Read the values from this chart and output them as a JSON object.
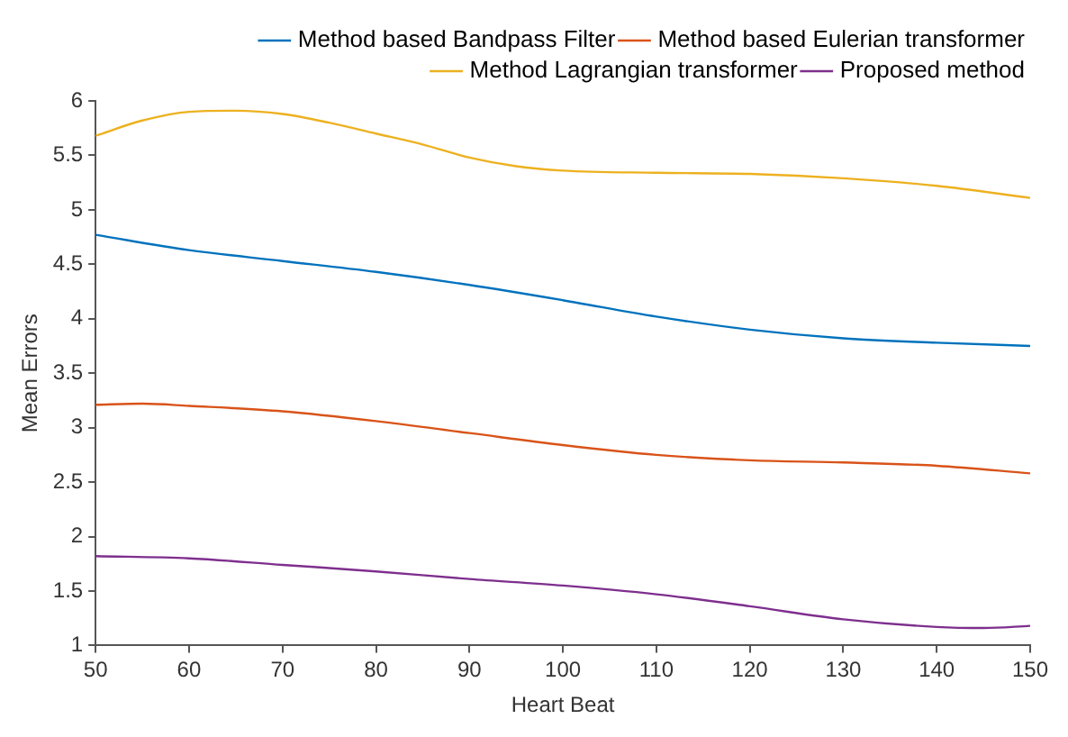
{
  "chart_data": {
    "type": "line",
    "xlabel": "Heart Beat",
    "ylabel": "Mean Errors",
    "xlim": [
      50,
      150
    ],
    "xticks": [
      50,
      60,
      70,
      80,
      90,
      100,
      110,
      120,
      130,
      140,
      150
    ],
    "ylim": [
      1,
      6
    ],
    "yticks": [
      1,
      1.5,
      2,
      2.5,
      3,
      3.5,
      4,
      4.5,
      5,
      5.5,
      6
    ],
    "grid": false,
    "legend": "top right",
    "marker": "none",
    "line_style": "solid",
    "series": [
      {
        "name": "Method based Bandpass Filter",
        "color": "#0072bd",
        "x": [
          50,
          60,
          70,
          80,
          90,
          100,
          110,
          120,
          130,
          140,
          150
        ],
        "values": [
          4.77,
          4.63,
          4.53,
          4.43,
          4.31,
          4.17,
          4.02,
          3.9,
          3.82,
          3.78,
          3.75
        ]
      },
      {
        "name": "Method based Eulerian transformer",
        "color": "#d95319",
        "x": [
          50,
          55,
          60,
          70,
          80,
          90,
          100,
          110,
          120,
          130,
          140,
          150
        ],
        "values": [
          3.21,
          3.22,
          3.2,
          3.15,
          3.06,
          2.95,
          2.84,
          2.75,
          2.7,
          2.68,
          2.65,
          2.58
        ]
      },
      {
        "name": "Method Lagrangian transformer",
        "color": "#edb120",
        "x": [
          50,
          55,
          60,
          65,
          70,
          75,
          80,
          85,
          90,
          95,
          100,
          110,
          120,
          130,
          140,
          150
        ],
        "values": [
          5.68,
          5.82,
          5.9,
          5.91,
          5.88,
          5.8,
          5.7,
          5.6,
          5.48,
          5.4,
          5.36,
          5.34,
          5.33,
          5.29,
          5.22,
          5.11
        ]
      },
      {
        "name": "Proposed method",
        "color": "#7e2f8e",
        "x": [
          50,
          60,
          70,
          80,
          90,
          100,
          110,
          120,
          130,
          140,
          145,
          150
        ],
        "values": [
          1.82,
          1.8,
          1.74,
          1.68,
          1.61,
          1.55,
          1.47,
          1.36,
          1.24,
          1.17,
          1.16,
          1.18
        ]
      }
    ]
  }
}
